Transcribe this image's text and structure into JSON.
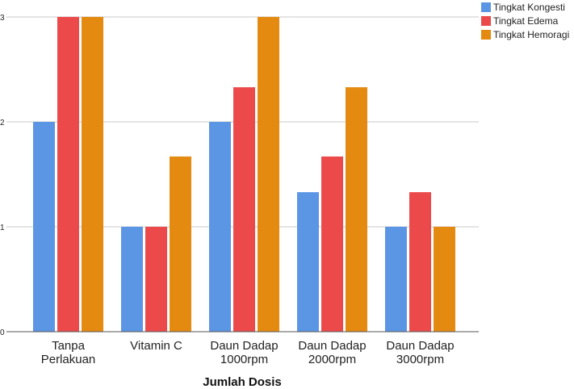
{
  "chart_data": {
    "type": "bar",
    "categories": [
      [
        "Tanpa",
        "Perlakuan"
      ],
      [
        "Vitamin C"
      ],
      [
        "Daun Dadap",
        "1000rpm"
      ],
      [
        "Daun Dadap",
        "2000rpm"
      ],
      [
        "Daun Dadap",
        "3000rpm"
      ]
    ],
    "series": [
      {
        "name": "Tingkat Kongesti",
        "color": "#5b96e5",
        "values": [
          2,
          1,
          2,
          1.33,
          1
        ]
      },
      {
        "name": "Tingkat Edema",
        "color": "#ec4a4a",
        "values": [
          3,
          1,
          2.33,
          1.67,
          1.33
        ]
      },
      {
        "name": "Tingkat Hemoragi",
        "color": "#e48a10",
        "values": [
          3,
          1.67,
          3,
          2.33,
          1
        ]
      }
    ],
    "title": "",
    "xlabel": "Jumlah Dosis",
    "ylabel": "",
    "ylim": [
      0,
      3
    ],
    "yticks": [
      "0",
      "1",
      "2",
      "3"
    ],
    "grid": true,
    "legend": "top-right"
  }
}
